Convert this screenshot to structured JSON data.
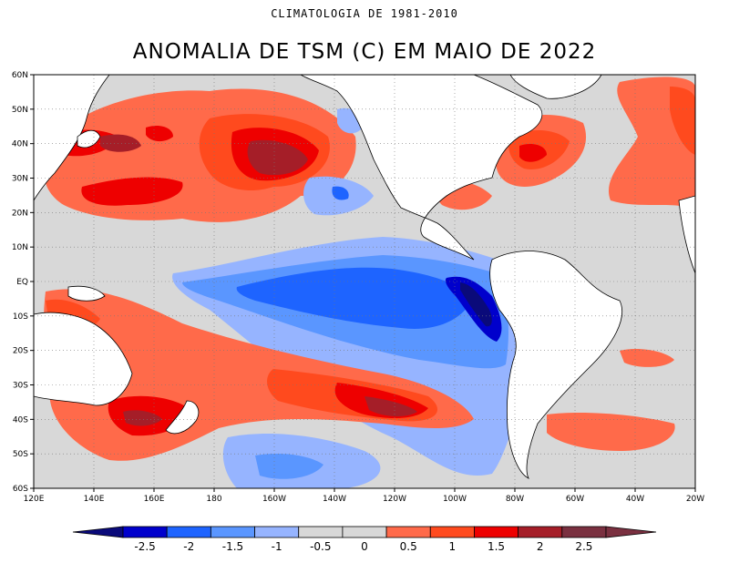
{
  "subtitle": "CLIMATOLOGIA DE 1981-2010",
  "title": "ANOMALIA DE TSM (C) EM MAIO DE 2022",
  "latitude_labels": [
    "60N",
    "50N",
    "40N",
    "30N",
    "20N",
    "10N",
    "EQ",
    "10S",
    "20S",
    "30S",
    "40S",
    "50S",
    "60S"
  ],
  "longitude_labels": [
    "120E",
    "140E",
    "160E",
    "180",
    "160W",
    "140W",
    "120W",
    "100W",
    "80W",
    "60W",
    "40W",
    "20W"
  ],
  "colorbar_labels": [
    "-2.5",
    "-2",
    "-1.5",
    "-1",
    "-0.5",
    "0",
    "0.5",
    "1",
    "1.5",
    "2",
    "2.5"
  ],
  "colorbar_colors": [
    "#0a0a7a",
    "#0000cc",
    "#1e64ff",
    "#5a96ff",
    "#96b4ff",
    "#d8d8d8",
    "#d8d8d8",
    "#ff6a4a",
    "#ff4a1e",
    "#ee0000",
    "#a51e28",
    "#7a3040"
  ],
  "colors": {
    "land": "#ffffff",
    "neutral": "#d8d8d8",
    "frame": "#000000"
  },
  "map_data": {
    "lon_range": [
      "120E",
      "20W"
    ],
    "lat_range": [
      "60S",
      "60N"
    ],
    "variable": "SST anomaly",
    "units": "C"
  }
}
